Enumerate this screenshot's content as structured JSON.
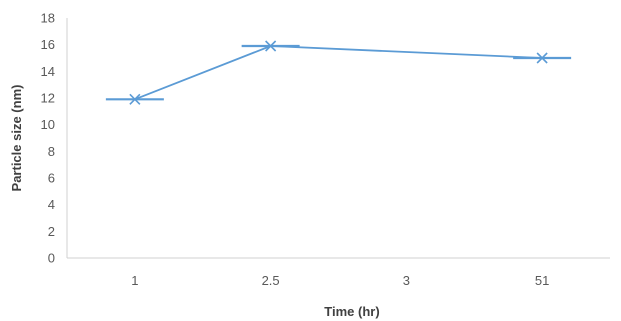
{
  "chart_data": {
    "type": "line",
    "title": "",
    "xlabel": "Time  (hr)",
    "ylabel": "Particle size (nm)",
    "categories": [
      "1",
      "2.5",
      "3",
      "51"
    ],
    "ylim": [
      0,
      18
    ],
    "yticks": [
      0,
      2,
      4,
      6,
      8,
      10,
      12,
      14,
      16,
      18
    ],
    "grid": false,
    "legend": "none",
    "series": [
      {
        "values": [
          11.9,
          15.9,
          null,
          15.0
        ],
        "color": "#5B9BD5",
        "marker": "x",
        "error_bar_caps": true
      }
    ]
  }
}
